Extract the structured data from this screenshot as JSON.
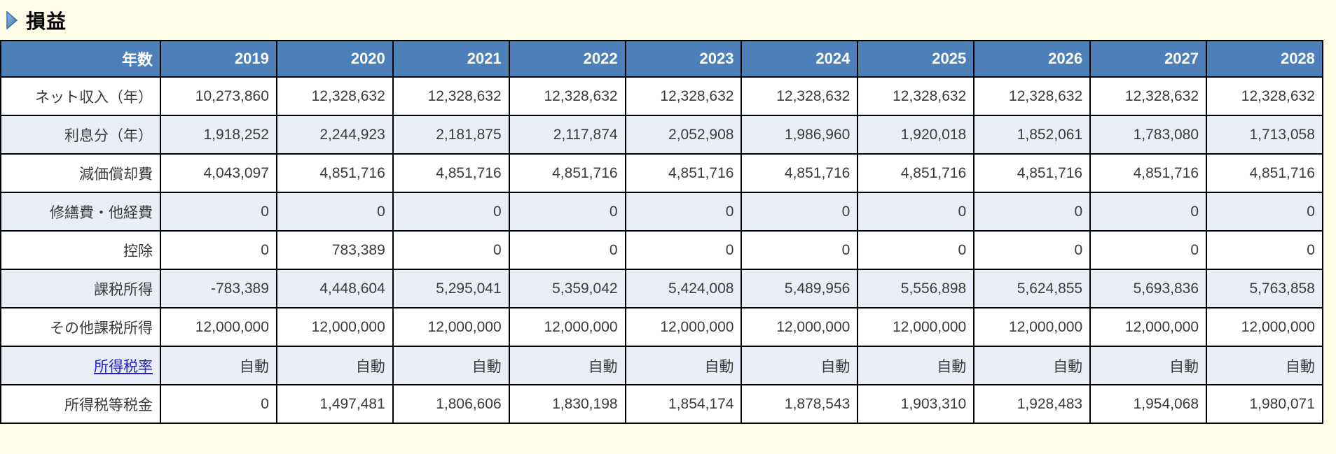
{
  "page": {
    "title": "損益"
  },
  "colors": {
    "page_bg": "#FDFDE8",
    "header_bg": "#4D80B9",
    "header_fg": "#FFFFFF",
    "alt_row_bg": "#E9EEF8",
    "cell_fg": "#3B3B3B",
    "negative": "#EE0000",
    "link": "#2222CC"
  },
  "table": {
    "header": {
      "label": "年数",
      "years": [
        "2019",
        "2020",
        "2021",
        "2022",
        "2023",
        "2024",
        "2025",
        "2026",
        "2027",
        "2028"
      ]
    },
    "rows": [
      {
        "label": "ネット収入（年）",
        "alt": false,
        "link": false,
        "values": [
          "10,273,860",
          "12,328,632",
          "12,328,632",
          "12,328,632",
          "12,328,632",
          "12,328,632",
          "12,328,632",
          "12,328,632",
          "12,328,632",
          "12,328,632"
        ]
      },
      {
        "label": "利息分（年）",
        "alt": true,
        "link": false,
        "values": [
          "1,918,252",
          "2,244,923",
          "2,181,875",
          "2,117,874",
          "2,052,908",
          "1,986,960",
          "1,920,018",
          "1,852,061",
          "1,783,080",
          "1,713,058"
        ]
      },
      {
        "label": "減価償却費",
        "alt": false,
        "link": false,
        "values": [
          "4,043,097",
          "4,851,716",
          "4,851,716",
          "4,851,716",
          "4,851,716",
          "4,851,716",
          "4,851,716",
          "4,851,716",
          "4,851,716",
          "4,851,716"
        ]
      },
      {
        "label": "修繕費・他経費",
        "alt": true,
        "link": false,
        "values": [
          "0",
          "0",
          "0",
          "0",
          "0",
          "0",
          "0",
          "0",
          "0",
          "0"
        ]
      },
      {
        "label": "控除",
        "alt": false,
        "link": false,
        "values": [
          "0",
          "783,389",
          "0",
          "0",
          "0",
          "0",
          "0",
          "0",
          "0",
          "0"
        ]
      },
      {
        "label": "課税所得",
        "alt": true,
        "link": false,
        "values": [
          "-783,389",
          "4,448,604",
          "5,295,041",
          "5,359,042",
          "5,424,008",
          "5,489,956",
          "5,556,898",
          "5,624,855",
          "5,693,836",
          "5,763,858"
        ]
      },
      {
        "label": "その他課税所得",
        "alt": false,
        "link": false,
        "values": [
          "12,000,000",
          "12,000,000",
          "12,000,000",
          "12,000,000",
          "12,000,000",
          "12,000,000",
          "12,000,000",
          "12,000,000",
          "12,000,000",
          "12,000,000"
        ]
      },
      {
        "label": "所得税率",
        "alt": true,
        "link": true,
        "values": [
          "自動",
          "自動",
          "自動",
          "自動",
          "自動",
          "自動",
          "自動",
          "自動",
          "自動",
          "自動"
        ]
      },
      {
        "label": "所得税等税金",
        "alt": false,
        "link": false,
        "values": [
          "0",
          "1,497,481",
          "1,806,606",
          "1,830,198",
          "1,854,174",
          "1,878,543",
          "1,903,310",
          "1,928,483",
          "1,954,068",
          "1,980,071"
        ]
      }
    ]
  }
}
